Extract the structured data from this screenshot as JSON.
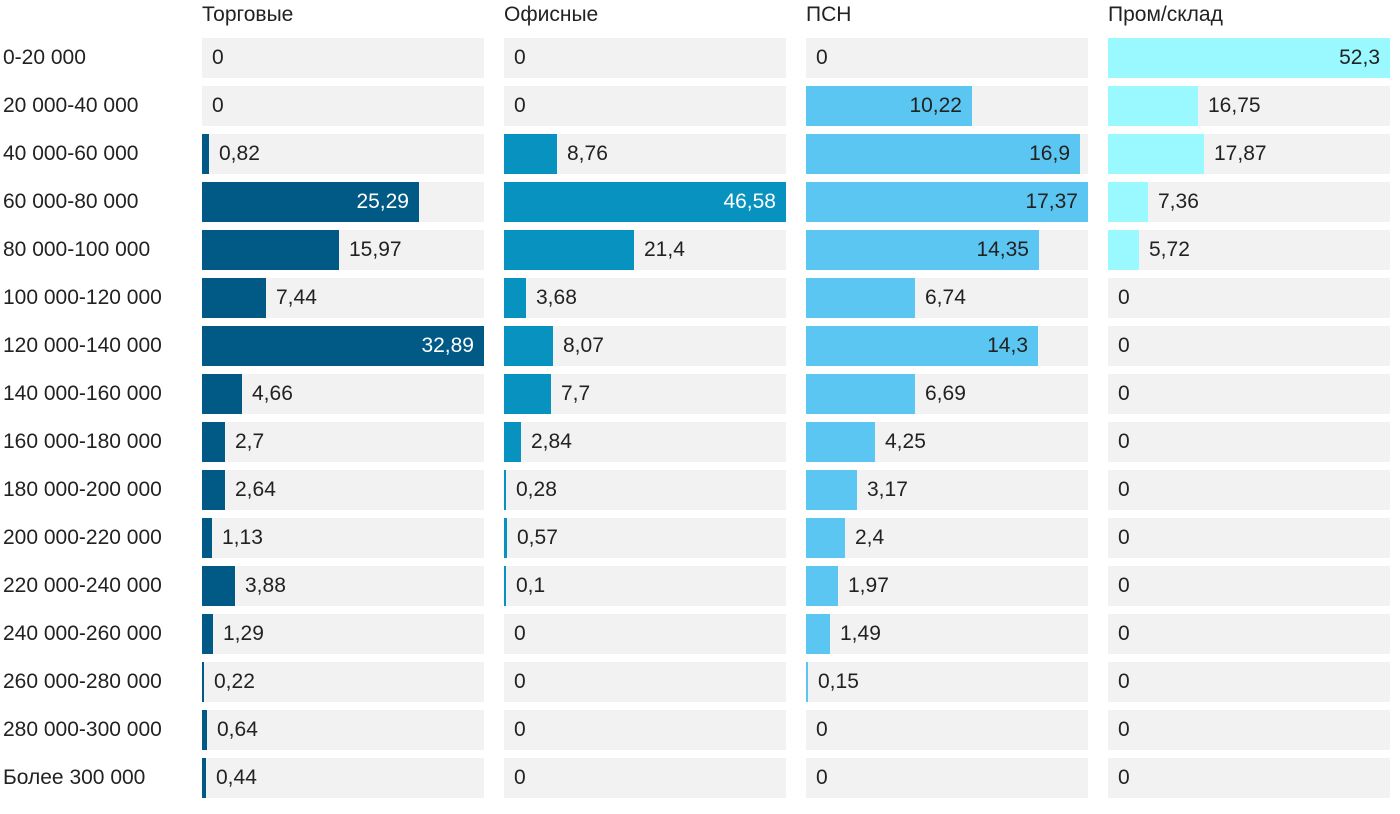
{
  "chart_data": {
    "type": "bar",
    "orientation": "horizontal",
    "layout": "small-multiples",
    "decimal_separator": ",",
    "categories": [
      "0-20 000",
      "20 000-40 000",
      "40 000-60 000",
      "60 000-80 000",
      "80 000-100 000",
      "100 000-120 000",
      "120 000-140 000",
      "140 000-160 000",
      "160 000-180 000",
      "180 000-200 000",
      "200 000-220 000",
      "220 000-240 000",
      "240 000-260 000",
      "260 000-280 000",
      "280 000-300 000",
      "Более 300 000"
    ],
    "series": [
      {
        "name": "Торговые",
        "color": "#005a85",
        "values": [
          0,
          0,
          0.82,
          25.29,
          15.97,
          7.44,
          32.89,
          4.66,
          2.7,
          2.64,
          1.13,
          3.88,
          1.29,
          0.22,
          0.64,
          0.44
        ]
      },
      {
        "name": "Офисные",
        "color": "#0792bf",
        "values": [
          0,
          0,
          8.76,
          46.58,
          21.4,
          3.68,
          8.07,
          7.7,
          2.84,
          0.28,
          0.57,
          0.1,
          0,
          0,
          0,
          0
        ]
      },
      {
        "name": "ПСН",
        "color": "#5cc6f2",
        "values": [
          0,
          10.22,
          16.9,
          17.37,
          14.35,
          6.74,
          14.3,
          6.69,
          4.25,
          3.17,
          2.4,
          1.97,
          1.49,
          0.15,
          0,
          0
        ]
      },
      {
        "name": "Пром/склад",
        "color": "#9af8ff",
        "values": [
          52.3,
          16.75,
          17.87,
          7.36,
          5.72,
          0,
          0,
          0,
          0,
          0,
          0,
          0,
          0,
          0,
          0,
          0
        ]
      }
    ],
    "grid": false,
    "legend": "none"
  }
}
